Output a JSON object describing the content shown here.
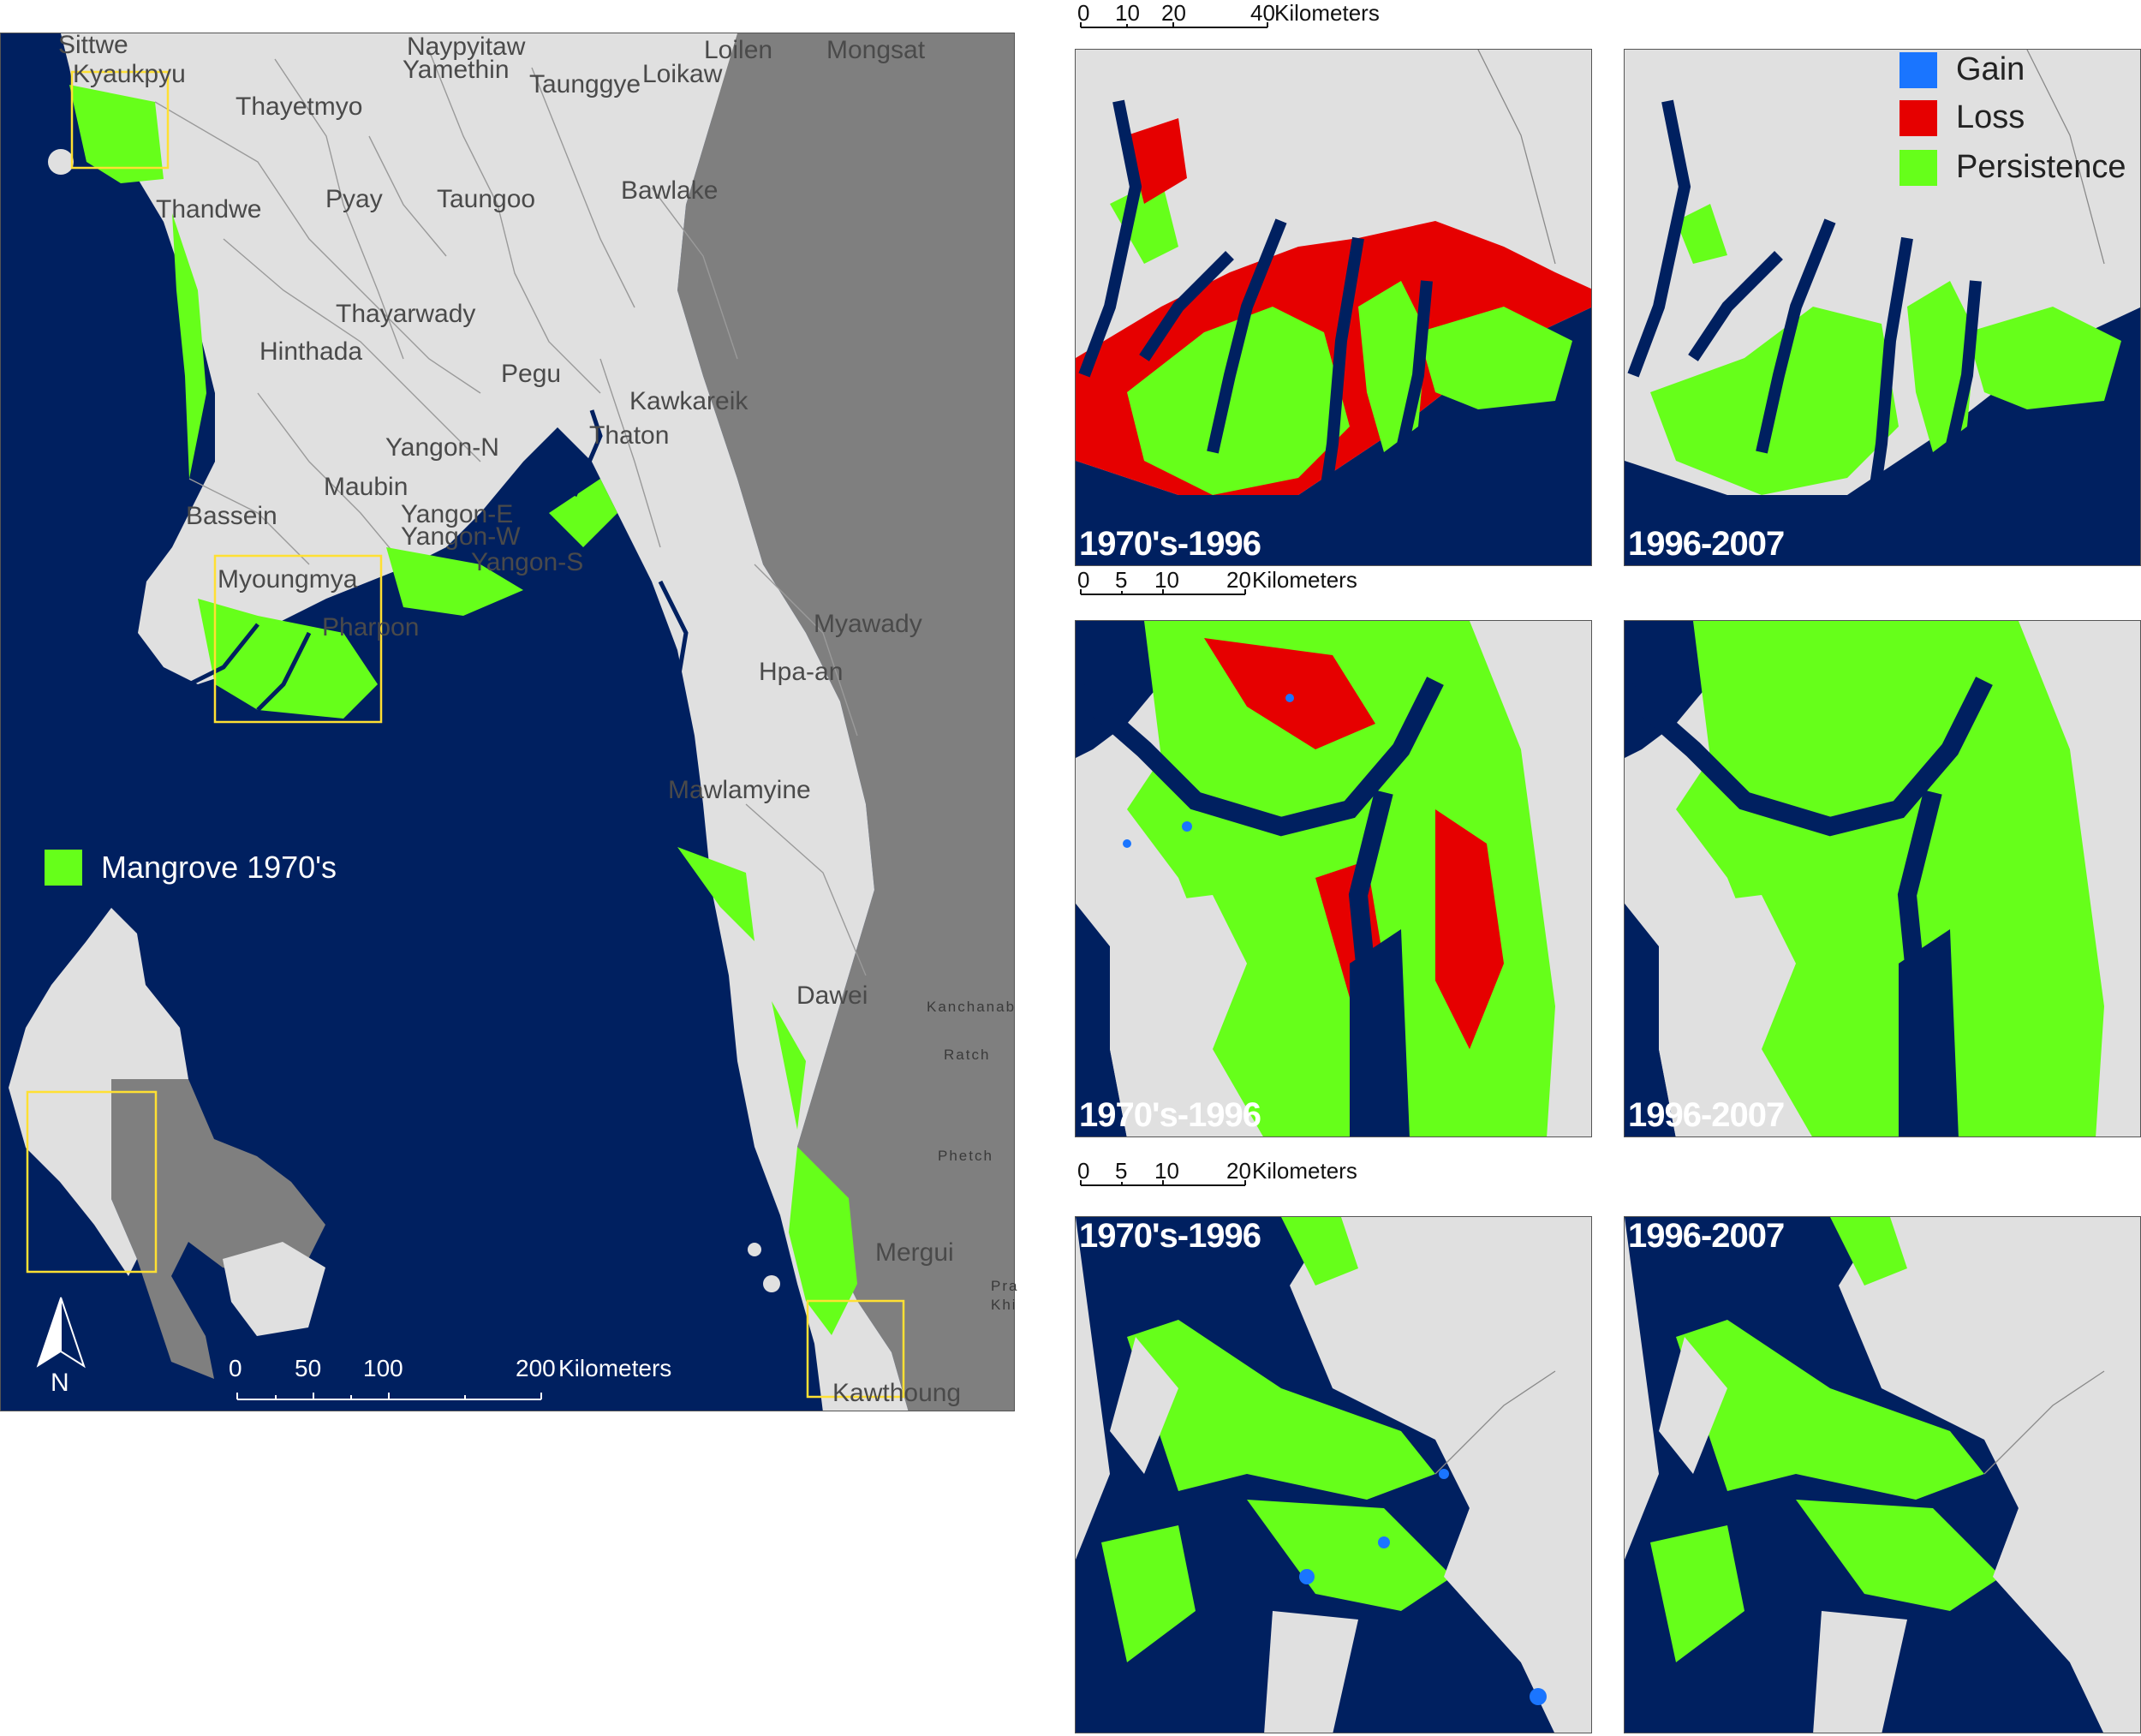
{
  "main_map": {
    "places": [
      "Sittwe",
      "Kyaukpyu",
      "Naypyitaw",
      "Yamethin",
      "Taunggye",
      "Loikaw",
      "Loilen",
      "Mongsat",
      "Thayetmyo",
      "Thandwe",
      "Pyay",
      "Taungoo",
      "Bawlake",
      "Thayarwady",
      "Hinthada",
      "Pegu",
      "Kawkareik",
      "Thaton",
      "Yangon-N",
      "Maubin",
      "Bassein",
      "Yangon-E",
      "Yangon-W",
      "Yangon-S",
      "Myoungmya",
      "Pharpon",
      "Myawady",
      "Hpa-an",
      "Mawlamyine",
      "Dawei",
      "Mergui",
      "Kawthoung"
    ],
    "thai_places": [
      "Kanchanab",
      "Ratch",
      "Phetch",
      "Pra",
      "Khi"
    ],
    "legend_label": "Mangrove 1970's",
    "north_label": "N",
    "scale": {
      "ticks": [
        "0",
        "50",
        "100",
        "200"
      ],
      "unit": "Kilometers"
    }
  },
  "legend": {
    "gain": "Gain",
    "loss": "Loss",
    "persistence": "Persistence"
  },
  "colors": {
    "sea": "#0a2a6e",
    "sea_dark": "#002060",
    "land": "#e0e0e0",
    "other_country": "#7f7f7f",
    "mangrove": "#66ff1a",
    "loss": "#e60000",
    "gain": "#1a75ff",
    "box": "#ffe033"
  },
  "panels": [
    {
      "period": "1970's-1996"
    },
    {
      "period": "1996-2007"
    },
    {
      "period": "1970's-1996"
    },
    {
      "period": "1996-2007"
    },
    {
      "period": "1970's-1996"
    },
    {
      "period": "1996-2007"
    }
  ],
  "scales": [
    {
      "ticks": [
        "0",
        "10",
        "20",
        "40"
      ],
      "unit": "Kilometers"
    },
    {
      "ticks": [
        "0",
        "5",
        "10",
        "20"
      ],
      "unit": "Kilometers"
    },
    {
      "ticks": [
        "0",
        "5",
        "10",
        "20"
      ],
      "unit": "Kilometers"
    }
  ]
}
